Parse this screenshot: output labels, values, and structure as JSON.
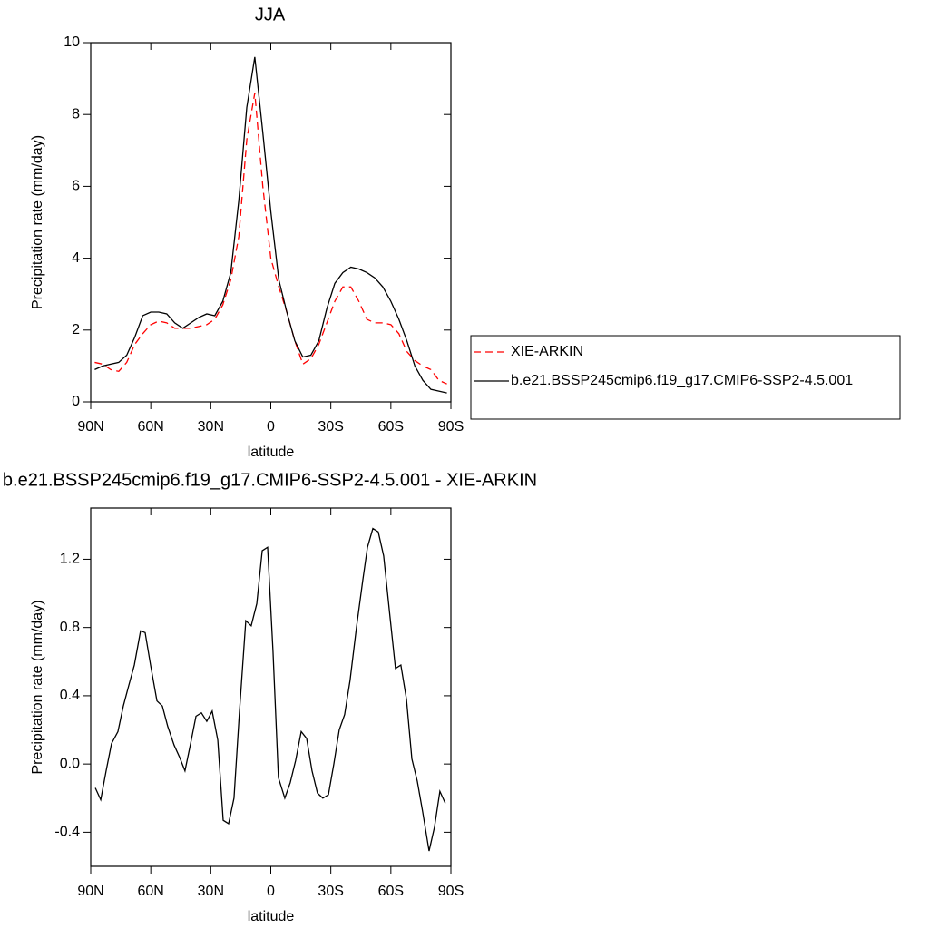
{
  "chart_data": [
    {
      "type": "line",
      "title": "JJA",
      "x_label": "latitude",
      "y_label": "Precipitation rate (mm/day)",
      "xlim": [
        90,
        -90
      ],
      "xticks": [
        {
          "value": 90,
          "label": "90N"
        },
        {
          "value": 60,
          "label": "60N"
        },
        {
          "value": 30,
          "label": "30N"
        },
        0,
        {
          "value": -30,
          "label": "30S"
        },
        {
          "value": -60,
          "label": "60S"
        },
        {
          "value": -90,
          "label": "90S"
        }
      ],
      "ylim": [
        0,
        10
      ],
      "yticks": [
        0,
        2,
        4,
        6,
        8,
        10
      ],
      "x": [
        88,
        84,
        80,
        76,
        72,
        68,
        64,
        60,
        56,
        52,
        48,
        44,
        40,
        36,
        32,
        28,
        24,
        20,
        16,
        12,
        8,
        4,
        0,
        -4,
        -8,
        -12,
        -16,
        -20,
        -24,
        -28,
        -32,
        -36,
        -40,
        -44,
        -48,
        -52,
        -56,
        -60,
        -64,
        -68,
        -72,
        -76,
        -80,
        -84,
        -88
      ],
      "series": [
        {
          "name": "XIE-ARKIN",
          "color": "#ff0000",
          "linestyle": "dashed",
          "values": [
            1.1,
            1.05,
            0.9,
            0.85,
            1.1,
            1.6,
            1.9,
            2.15,
            2.25,
            2.2,
            2.05,
            2.05,
            2.05,
            2.1,
            2.15,
            2.3,
            2.7,
            3.4,
            4.6,
            7.3,
            8.6,
            6.0,
            4.0,
            3.2,
            2.5,
            1.7,
            1.05,
            1.2,
            1.6,
            2.2,
            2.8,
            3.2,
            3.2,
            2.8,
            2.3,
            2.2,
            2.2,
            2.15,
            1.9,
            1.4,
            1.15,
            1.0,
            0.9,
            0.6,
            0.5
          ]
        },
        {
          "name": "b.e21.BSSP245cmip6.f19_g17.CMIP6-SSP2-4.5.001",
          "color": "#000000",
          "linestyle": "solid",
          "values": [
            0.9,
            1.0,
            1.05,
            1.1,
            1.3,
            1.8,
            2.4,
            2.5,
            2.5,
            2.45,
            2.2,
            2.05,
            2.2,
            2.35,
            2.45,
            2.4,
            2.8,
            3.6,
            5.6,
            8.2,
            9.6,
            7.5,
            5.3,
            3.4,
            2.5,
            1.7,
            1.25,
            1.3,
            1.7,
            2.6,
            3.3,
            3.6,
            3.75,
            3.7,
            3.6,
            3.45,
            3.2,
            2.8,
            2.3,
            1.7,
            1.0,
            0.6,
            0.35,
            0.3,
            0.25
          ]
        }
      ]
    },
    {
      "type": "line",
      "title": "b.e21.BSSP245cmip6.f19_g17.CMIP6-SSP2-4.5.001 - XIE-ARKIN",
      "x_label": "latitude",
      "y_label": "Precipitation rate (mm/day)",
      "xlim": [
        90,
        -90
      ],
      "xticks": [
        {
          "value": 90,
          "label": "90N"
        },
        {
          "value": 60,
          "label": "60N"
        },
        {
          "value": 30,
          "label": "30N"
        },
        0,
        {
          "value": -30,
          "label": "30S"
        },
        {
          "value": -60,
          "label": "60S"
        },
        {
          "value": -90,
          "label": "90S"
        }
      ],
      "ylim": [
        -0.6,
        1.5
      ],
      "yticks": [
        -0.4,
        {
          "value": 0,
          "label": "0.0"
        },
        0.4,
        0.8,
        1.2
      ],
      "x": [
        87.7,
        85.0,
        82.3,
        79.6,
        76.4,
        73.7,
        71.0,
        68.2,
        65.1,
        62.8,
        60.1,
        56.9,
        54.2,
        51.5,
        48.3,
        45.6,
        42.9,
        40.1,
        37.4,
        34.7,
        32.0,
        29.3,
        26.5,
        23.8,
        21.1,
        18.4,
        15.7,
        12.5,
        9.8,
        7.0,
        4.3,
        1.6,
        -1.1,
        -3.8,
        -7.0,
        -9.7,
        -12.4,
        -15.2,
        -17.9,
        -20.6,
        -23.3,
        -26.0,
        -28.8,
        -31.5,
        -34.2,
        -36.9,
        -39.6,
        -42.8,
        -46.0,
        -48.3,
        -51.0,
        -53.7,
        -56.4,
        -59.6,
        -62.3,
        -65.0,
        -67.8,
        -70.5,
        -73.2,
        -75.9,
        -79.1,
        -81.8,
        -84.5,
        -87.2
      ],
      "color": "#000000",
      "values": [
        -0.14,
        -0.21,
        -0.04,
        0.12,
        0.19,
        0.34,
        0.46,
        0.58,
        0.78,
        0.77,
        0.58,
        0.37,
        0.34,
        0.22,
        0.11,
        0.04,
        -0.04,
        0.12,
        0.28,
        0.3,
        0.25,
        0.31,
        0.14,
        -0.33,
        -0.35,
        -0.2,
        0.3,
        0.84,
        0.81,
        0.94,
        1.25,
        1.27,
        0.66,
        -0.08,
        -0.2,
        -0.11,
        0.02,
        0.19,
        0.15,
        -0.04,
        -0.17,
        -0.2,
        -0.18,
        0.0,
        0.2,
        0.29,
        0.49,
        0.8,
        1.08,
        1.27,
        1.38,
        1.36,
        1.22,
        0.86,
        0.56,
        0.58,
        0.38,
        0.03,
        -0.1,
        -0.28,
        -0.51,
        -0.37,
        -0.16,
        -0.23
      ]
    }
  ]
}
